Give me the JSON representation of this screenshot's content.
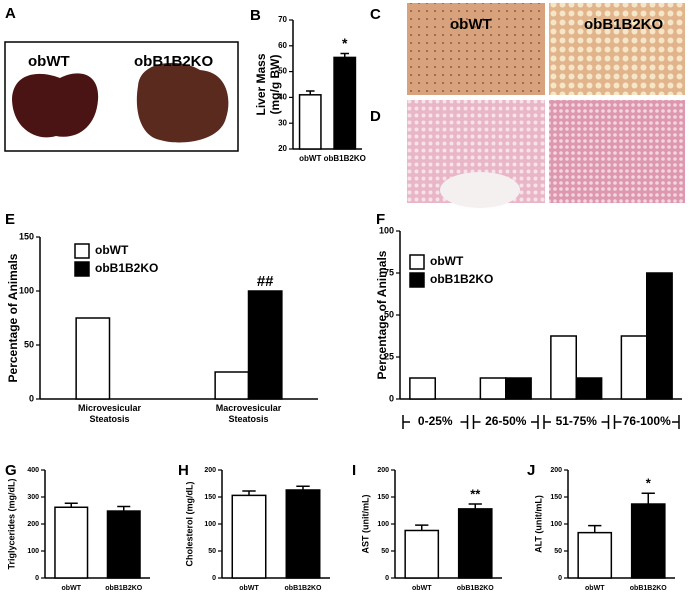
{
  "image_panels": [
    {
      "letter": "A",
      "labels": [
        "obWT",
        "obB1B2KO"
      ]
    },
    {
      "letter": "C",
      "labels": [
        "obWT",
        "obB1B2KO"
      ]
    },
    {
      "letter": "D"
    }
  ],
  "chart_data": [
    {
      "type": "bar",
      "panel": "B",
      "ylabel": [
        "Liver Mass",
        "(mg/g BW)"
      ],
      "categories": [
        "obWT",
        "obB1B2KO"
      ],
      "values": [
        41,
        55.5
      ],
      "errors": [
        1.5,
        1.5
      ],
      "colors": [
        "#ffffff",
        "#000000"
      ],
      "ylim": [
        20,
        70
      ],
      "yticks": [
        20,
        30,
        40,
        50,
        60,
        70
      ],
      "annotation": "*"
    },
    {
      "type": "bar",
      "panel": "E",
      "ylabel": "Percentage of Animals",
      "categories": [
        "Microvesicular Steatosis",
        "Macrovesicular Steatosis"
      ],
      "series": [
        {
          "name": "obWT",
          "color": "#ffffff",
          "values": [
            75,
            25
          ]
        },
        {
          "name": "obB1B2KO",
          "color": "#000000",
          "values": [
            0,
            100
          ]
        }
      ],
      "ylim": [
        0,
        150
      ],
      "yticks": [
        0,
        50,
        100,
        150
      ],
      "legend": "upper left",
      "annotation": "##"
    },
    {
      "type": "bar",
      "panel": "F",
      "ylabel": "Percentage of Animals",
      "categories": [
        "0-25%",
        "26-50%",
        "51-75%",
        "76-100%"
      ],
      "series": [
        {
          "name": "obWT",
          "color": "#ffffff",
          "values": [
            12.5,
            12.5,
            37.5,
            37.5
          ]
        },
        {
          "name": "obB1B2KO",
          "color": "#000000",
          "values": [
            0,
            12.5,
            12.5,
            75
          ]
        }
      ],
      "ylim": [
        0,
        100
      ],
      "yticks": [
        0,
        25,
        50,
        75,
        100
      ],
      "legend": "upper left"
    },
    {
      "type": "bar",
      "panel": "G",
      "ylabel": "Triglycerides (mg/dL)",
      "categories": [
        "obWT",
        "obB1B2KO"
      ],
      "values": [
        262,
        248
      ],
      "errors": [
        15,
        17
      ],
      "colors": [
        "#ffffff",
        "#000000"
      ],
      "ylim": [
        0,
        400
      ],
      "yticks": [
        0,
        100,
        200,
        300,
        400
      ]
    },
    {
      "type": "bar",
      "panel": "H",
      "ylabel": "Cholesterol (mg/dL)",
      "categories": [
        "obWT",
        "obB1B2KO"
      ],
      "values": [
        153,
        163
      ],
      "errors": [
        8,
        7
      ],
      "colors": [
        "#ffffff",
        "#000000"
      ],
      "ylim": [
        0,
        200
      ],
      "yticks": [
        0,
        50,
        100,
        150,
        200
      ]
    },
    {
      "type": "bar",
      "panel": "I",
      "ylabel": "AST (unit/mL)",
      "categories": [
        "obWT",
        "obB1B2KO"
      ],
      "values": [
        88,
        128
      ],
      "errors": [
        10,
        9
      ],
      "colors": [
        "#ffffff",
        "#000000"
      ],
      "ylim": [
        0,
        200
      ],
      "yticks": [
        0,
        50,
        100,
        150,
        200
      ],
      "annotation": "**"
    },
    {
      "type": "bar",
      "panel": "J",
      "ylabel": "ALT (unit/mL)",
      "categories": [
        "obWT",
        "obB1B2KO"
      ],
      "values": [
        84,
        137
      ],
      "errors": [
        13,
        20
      ],
      "colors": [
        "#ffffff",
        "#000000"
      ],
      "ylim": [
        0,
        200
      ],
      "yticks": [
        0,
        50,
        100,
        150,
        200
      ],
      "annotation": "*"
    }
  ]
}
